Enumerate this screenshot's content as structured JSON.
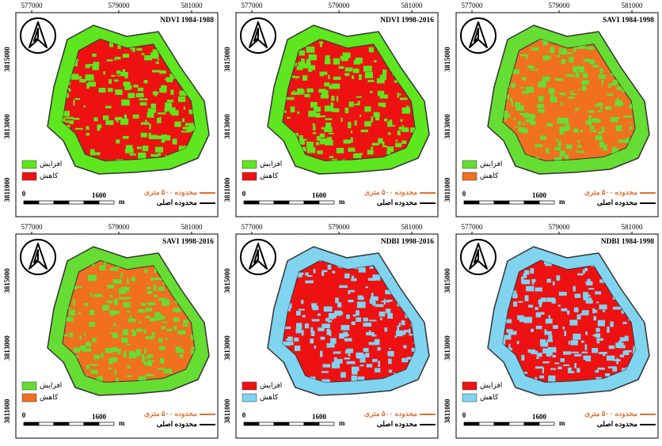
{
  "x_ticks": [
    "577000",
    "579000",
    "581000"
  ],
  "y_ticks": [
    "3815000",
    "3813000",
    "3811000"
  ],
  "scale": {
    "start": "0",
    "end": "1600",
    "unit": "m"
  },
  "boundaries": [
    {
      "label": "محدوده ۵۰۰ متری",
      "color": "#e07030"
    },
    {
      "label": "محدوده اصلی",
      "color": "#000000"
    }
  ],
  "panels": [
    {
      "title": "NDVI 1984-1988",
      "legend": [
        {
          "label": "افزایش",
          "color": "#5ee61e"
        },
        {
          "label": "کاهش",
          "color": "#ee1111"
        }
      ]
    },
    {
      "title": "NDVI 1998-2016",
      "legend": [
        {
          "label": "افزایش",
          "color": "#5ee61e"
        },
        {
          "label": "کاهش",
          "color": "#ee1111"
        }
      ]
    },
    {
      "title": "SAVI 1984-1998",
      "legend": [
        {
          "label": "افزایش",
          "color": "#66dd33"
        },
        {
          "label": "کاهش",
          "color": "#f07020"
        }
      ]
    },
    {
      "title": "SAVI 1998-2016",
      "legend": [
        {
          "label": "افزایش",
          "color": "#66dd33"
        },
        {
          "label": "کاهش",
          "color": "#f07020"
        }
      ]
    },
    {
      "title": "NDBI 1998-2016",
      "legend": [
        {
          "label": "افزایش",
          "color": "#ee1111"
        },
        {
          "label": "کاهش",
          "color": "#80d4f0"
        }
      ]
    },
    {
      "title": "NDBI 1984-1998",
      "legend": [
        {
          "label": "افزایش",
          "color": "#ee1111"
        },
        {
          "label": "کاهش",
          "color": "#80d4f0"
        }
      ]
    }
  ]
}
